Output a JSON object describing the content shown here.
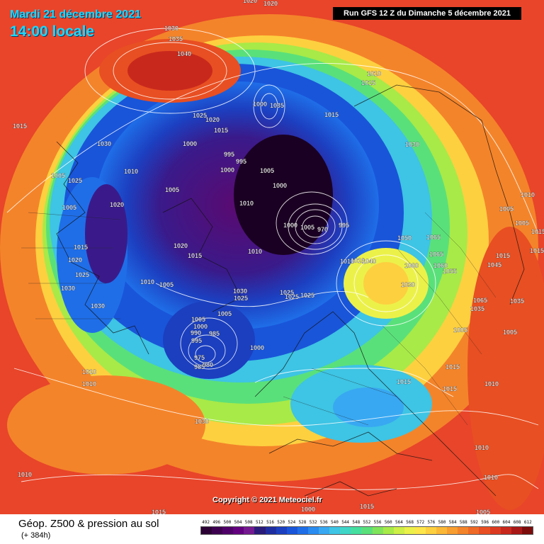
{
  "header": {
    "date": "Mardi 21 décembre 2021",
    "time": "14:00 locale",
    "run": "Run GFS 12 Z du Dimanche 5 décembre 2021"
  },
  "copyright": "Copyright © 2021 Meteociel.fr",
  "footer": {
    "title": "Géop. Z500 & pression au sol",
    "subtitle": "(+ 384h)"
  },
  "legend": {
    "values": [
      "492",
      "496",
      "500",
      "504",
      "508",
      "512",
      "516",
      "520",
      "524",
      "528",
      "532",
      "536",
      "540",
      "544",
      "548",
      "552",
      "556",
      "560",
      "564",
      "568",
      "572",
      "576",
      "580",
      "584",
      "588",
      "592",
      "596",
      "600",
      "604",
      "608",
      "612"
    ],
    "colors": [
      "#2b0034",
      "#3d0050",
      "#4f0068",
      "#62007f",
      "#74198f",
      "#2a1a7a",
      "#1e2ea0",
      "#1b3fbf",
      "#1955d9",
      "#1f6ee8",
      "#2a8bf0",
      "#38a8f2",
      "#3ec4e4",
      "#3fd6c8",
      "#45dfa0",
      "#5ae07a",
      "#80e45a",
      "#a8ea48",
      "#cdef46",
      "#ecf14a",
      "#fde64a",
      "#fdd040",
      "#fbb837",
      "#f89e30",
      "#f4842a",
      "#ef6a26",
      "#e84f22",
      "#dc3a20",
      "#c8281c",
      "#a81816",
      "#7c0c0c"
    ]
  },
  "pressure_labels": [
    "1020",
    "1020",
    "1030",
    "1035",
    "1040",
    "1010",
    "1015",
    "1015",
    "1000",
    "1035",
    "1025",
    "1020",
    "1015",
    "1030",
    "1000",
    "1015",
    "995",
    "995",
    "1000",
    "1005",
    "1005",
    "1025",
    "1010",
    "1030",
    "1005",
    "1005",
    "1000",
    "1010",
    "1010",
    "1005",
    "1020",
    "1005",
    "1020",
    "1015",
    "1000",
    "1005",
    "970",
    "995",
    "1015",
    "1010",
    "1010",
    "1010",
    "1015",
    "1050",
    "1065",
    "1015",
    "1065",
    "1045",
    "1015",
    "1020",
    "1025",
    "1010",
    "1005",
    "1040",
    "1060",
    "1060",
    "1055",
    "1030",
    "1030",
    "1005",
    "1025",
    "1030",
    "1030",
    "1025",
    "1025",
    "1025",
    "1065",
    "1035",
    "1035",
    "1000",
    "1005",
    "990",
    "995",
    "985",
    "975",
    "980",
    "985",
    "1000",
    "1005",
    "1005",
    "1010",
    "1010",
    "1015",
    "1015",
    "1015",
    "1010",
    "1030",
    "1010",
    "1010",
    "1010",
    "1015",
    "1015",
    "1000",
    "1005"
  ]
}
